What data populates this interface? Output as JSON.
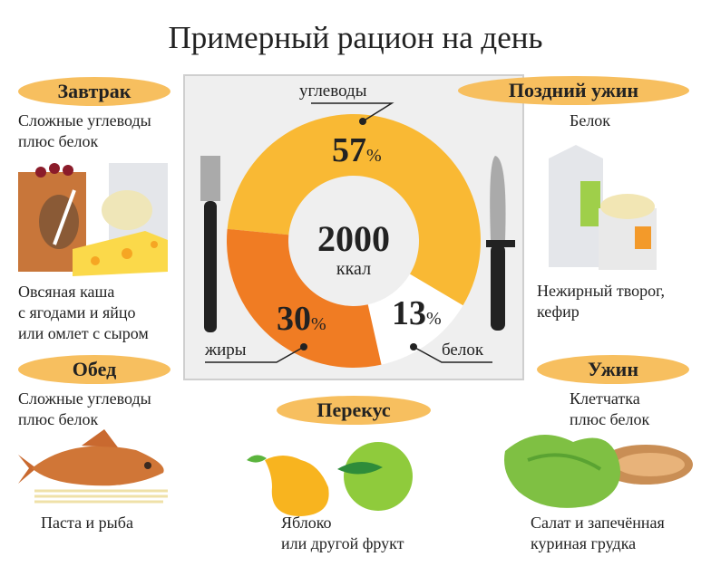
{
  "title": "Примерный рацион на день",
  "meals": {
    "breakfast": {
      "label": "Завтрак",
      "desc": [
        "Сложные углеводы",
        "плюс белок"
      ],
      "caption": [
        "Овсяная каша",
        "с ягодами и яйцо",
        "или омлет с сыром"
      ]
    },
    "lunch": {
      "label": "Обед",
      "desc": [
        "Сложные углеводы",
        "плюс белок"
      ],
      "caption": [
        "Паста и рыба"
      ]
    },
    "snack": {
      "label": "Перекус",
      "caption": [
        "Яблоко",
        "или другой фрукт"
      ]
    },
    "late_dinner": {
      "label": "Поздний ужин",
      "desc": [
        "Белок"
      ],
      "caption": [
        "Нежирный творог,",
        "кефир"
      ]
    },
    "dinner": {
      "label": "Ужин",
      "desc": [
        "Клетчатка",
        "плюс белок"
      ],
      "caption": [
        "Салат и запечённая",
        "куриная грудка"
      ]
    }
  },
  "chart_data": {
    "type": "pie",
    "donut": true,
    "center_value": "2000",
    "center_unit": "ккал",
    "categories": [
      "углеводы",
      "белок",
      "жиры"
    ],
    "values": [
      57,
      13,
      30
    ],
    "value_labels": [
      "57",
      "13",
      "30"
    ],
    "unit": "%",
    "colors": [
      "#f9b934",
      "#ffffff",
      "#f07c23"
    ]
  },
  "colors": {
    "pill": "#f7bf5f",
    "plate": "#efefef"
  }
}
